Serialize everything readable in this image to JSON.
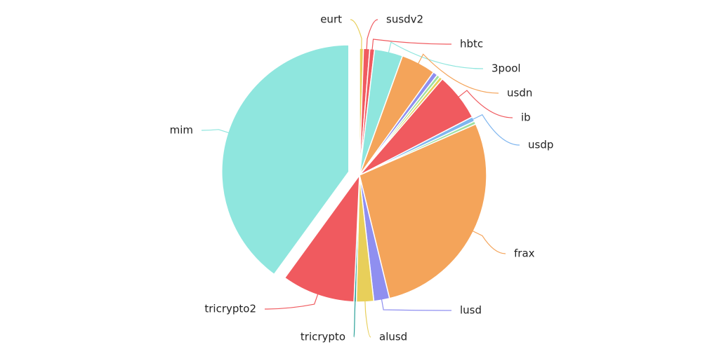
{
  "chart_data": {
    "type": "pie",
    "categories": [
      "eurt",
      "susdv2",
      "hbtc",
      "3pool",
      "usdn",
      null,
      null,
      null,
      "ib",
      "usdp",
      null,
      "frax",
      "lusd",
      "alusd",
      "tricrypto",
      "tricrypto2",
      "mim"
    ],
    "values": [
      0.5,
      0.8,
      0.6,
      3.6,
      4.4,
      0.6,
      0.4,
      0.4,
      6.1,
      0.6,
      0.4,
      27.8,
      2,
      2.2,
      0.3,
      9.3,
      40
    ],
    "colors": [
      "#e8cf5a",
      "#f05a5f",
      "#f05a5f",
      "#8fe6de",
      "#f4a45a",
      "#8f8ff0",
      "#9fe09f",
      "#e8cf5a",
      "#f05a5f",
      "#7fb6ef",
      "#9fe09f",
      "#f4a45a",
      "#8f8ff0",
      "#e8cf5a",
      "#2aa198",
      "#f05a5f",
      "#8fe6de"
    ],
    "exploded": "mim"
  }
}
